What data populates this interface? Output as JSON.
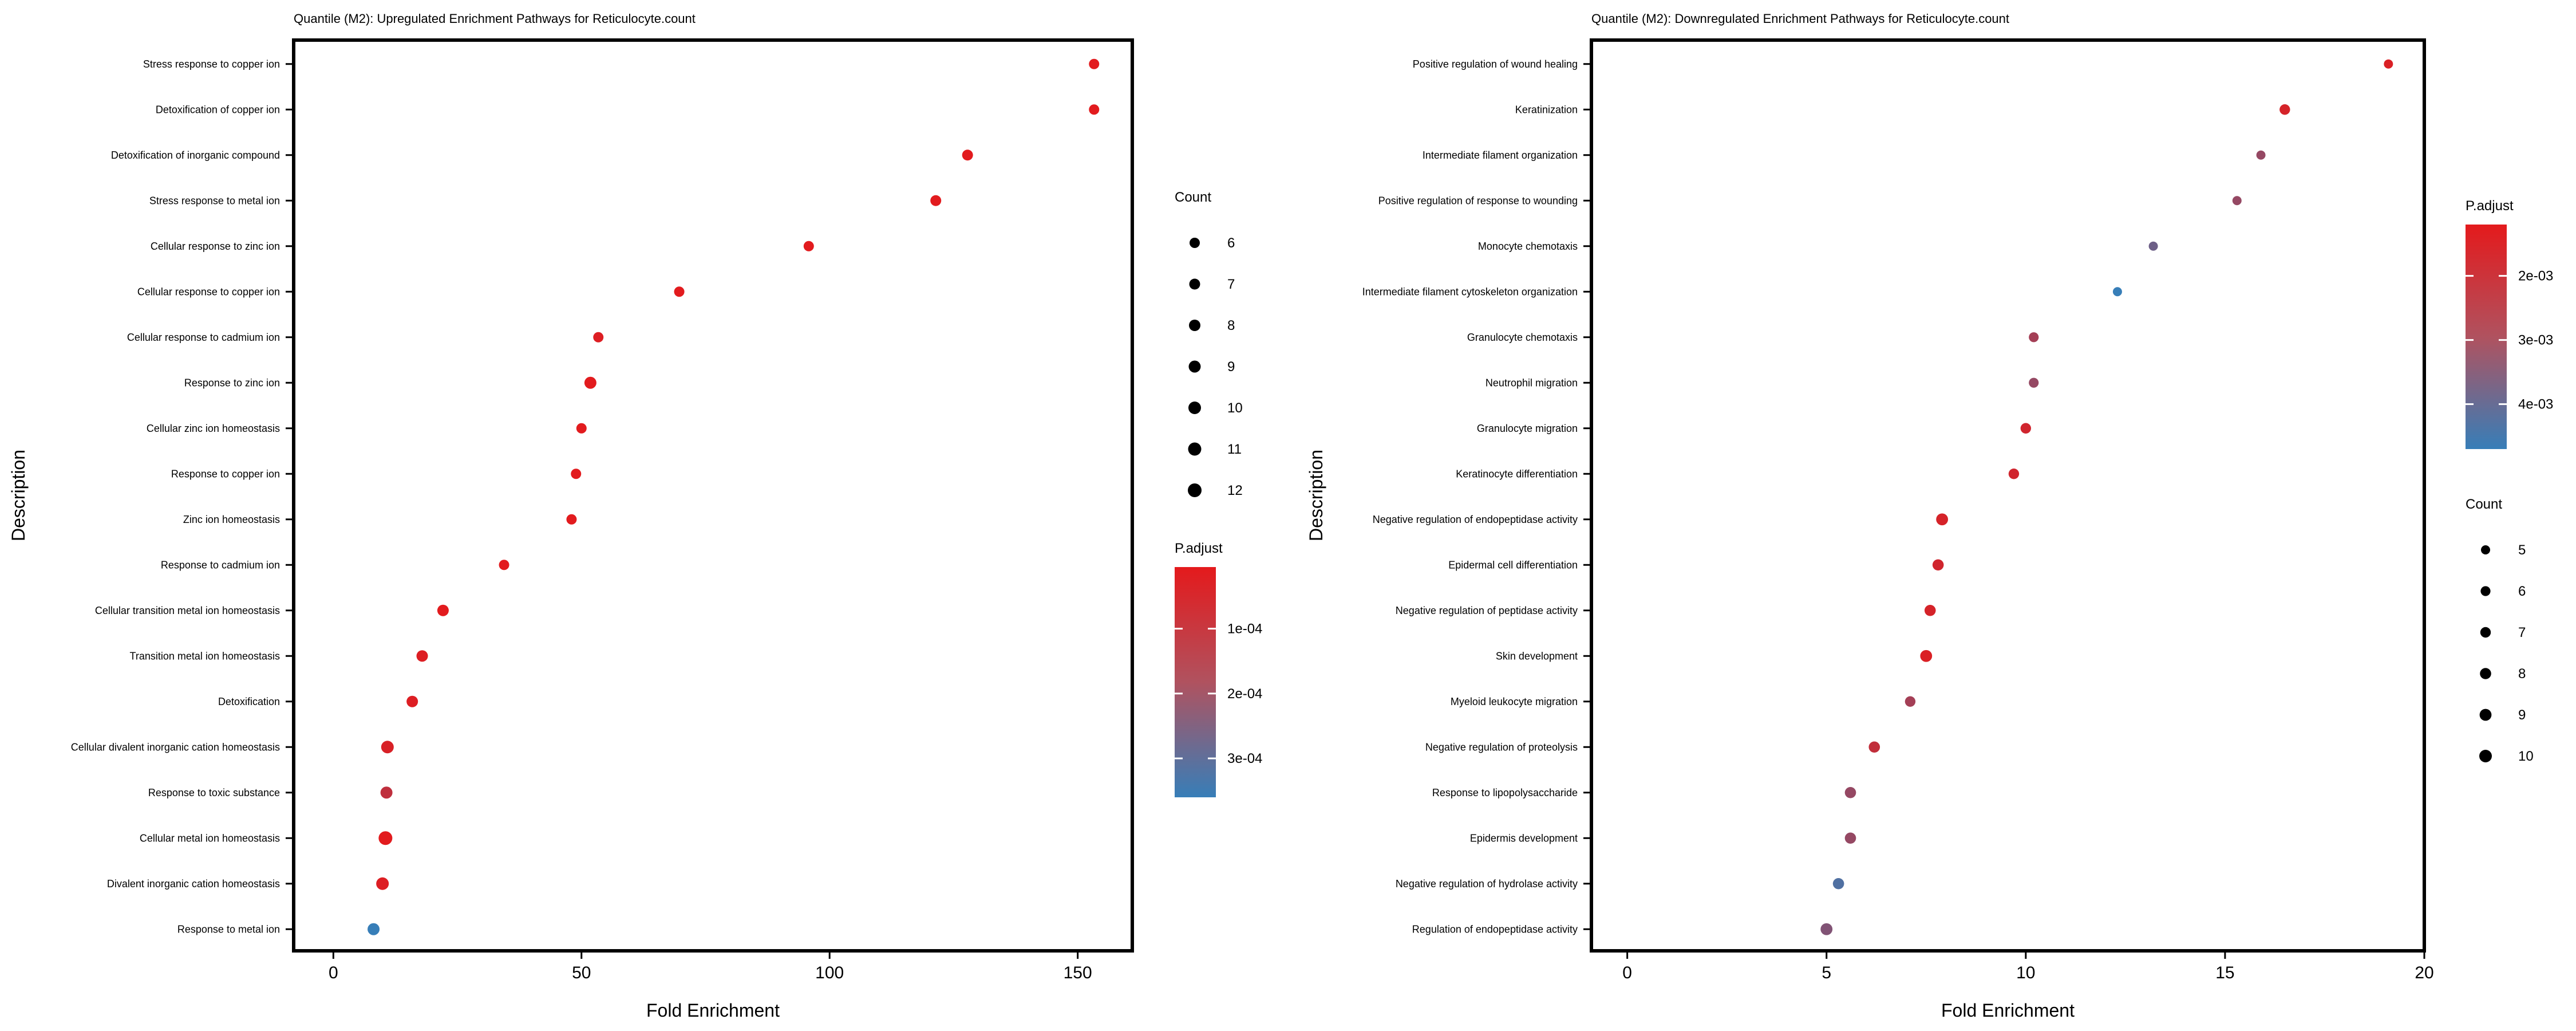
{
  "chart_data": [
    {
      "type": "scatter",
      "title": "Quantile (M2): Upregulated Enrichment Pathways for Reticulocyte.count",
      "xlabel": "Fold Enrichment",
      "ylabel": "Description",
      "xlim": [
        -8,
        161
      ],
      "xticks": [
        0,
        50,
        100,
        150
      ],
      "grid": false,
      "legend_position": "right",
      "descriptions": [
        "Stress response to copper ion",
        "Detoxification of copper ion",
        "Detoxification of inorganic compound",
        "Stress response to metal ion",
        "Cellular response to zinc ion",
        "Cellular response to copper ion",
        "Cellular response to cadmium ion",
        "Response to zinc ion",
        "Cellular zinc ion homeostasis",
        "Response to copper ion",
        "Zinc ion homeostasis",
        "Response to cadmium ion",
        "Cellular transition metal ion homeostasis",
        "Transition metal ion homeostasis",
        "Detoxification",
        "Cellular divalent inorganic cation homeostasis",
        "Response to toxic substance",
        "Cellular metal ion homeostasis",
        "Divalent inorganic cation homeostasis",
        "Response to metal ion"
      ],
      "fold_enrichment": [
        153.3,
        153.3,
        127.8,
        121.4,
        95.8,
        69.7,
        53.4,
        51.8,
        50.0,
        48.9,
        48.0,
        34.4,
        22.1,
        17.9,
        15.9,
        10.9,
        10.7,
        10.5,
        9.9,
        8.1
      ],
      "count": [
        6,
        6,
        7,
        7,
        6,
        6,
        6,
        9,
        6,
        6,
        6,
        6,
        8,
        8,
        8,
        10,
        9,
        12,
        10,
        9
      ],
      "p_adjust": [
        1e-05,
        1e-05,
        1e-05,
        1e-05,
        1e-05,
        1e-05,
        2e-05,
        1e-05,
        1e-05,
        1e-05,
        1e-05,
        1e-05,
        1e-05,
        2e-05,
        2e-05,
        3e-05,
        8e-05,
        1e-05,
        2e-05,
        0.00036
      ],
      "legend_count": {
        "title": "Count",
        "values": [
          6,
          7,
          8,
          9,
          10,
          11,
          12
        ],
        "labels": [
          "6",
          "7",
          "8",
          "9",
          "10",
          "11",
          "12"
        ]
      },
      "legend_padj": {
        "title": "P.adjust",
        "range": [
          5e-06,
          0.00036
        ],
        "ticks": [
          0.0001,
          0.0002,
          0.0003
        ],
        "tick_labels": [
          "1e-04",
          "2e-04",
          "3e-04"
        ],
        "color_low": "#e41a1c",
        "color_high": "#377eb8"
      }
    },
    {
      "type": "scatter",
      "title": "Quantile (M2): Downregulated Enrichment Pathways for Reticulocyte.count",
      "xlabel": "Fold Enrichment",
      "ylabel": "Description",
      "xlim": [
        -0.9,
        20
      ],
      "xticks": [
        0,
        5,
        10,
        15,
        20
      ],
      "grid": false,
      "legend_position": "right",
      "descriptions": [
        "Positive regulation of wound healing",
        "Keratinization",
        "Intermediate filament organization",
        "Positive regulation of response to wounding",
        "Monocyte chemotaxis",
        "Intermediate filament cytoskeleton organization",
        "Granulocyte chemotaxis",
        "Neutrophil migration",
        "Granulocyte migration",
        "Keratinocyte differentiation",
        "Negative regulation of endopeptidase activity",
        "Epidermal cell differentiation",
        "Negative regulation of peptidase activity",
        "Skin development",
        "Myeloid leukocyte migration",
        "Negative regulation of proteolysis",
        "Response to lipopolysaccharide",
        "Epidermis development",
        "Negative regulation of hydrolase activity",
        "Regulation of endopeptidase activity"
      ],
      "fold_enrichment": [
        19.1,
        16.5,
        15.9,
        15.3,
        13.2,
        12.3,
        10.2,
        10.2,
        10.0,
        9.7,
        7.9,
        7.8,
        7.6,
        7.5,
        7.1,
        6.2,
        5.6,
        5.6,
        5.3,
        5.0
      ],
      "count": [
        5,
        7,
        5,
        5,
        5,
        5,
        6,
        6,
        7,
        7,
        9,
        8,
        8,
        9,
        7,
        8,
        8,
        8,
        8,
        9
      ],
      "p_adjust": [
        0.0014,
        0.0015,
        0.0028,
        0.0028,
        0.0036,
        0.0047,
        0.0025,
        0.0028,
        0.0016,
        0.0016,
        0.0015,
        0.0016,
        0.0015,
        0.0014,
        0.0025,
        0.0019,
        0.0028,
        0.0028,
        0.0042,
        0.0032
      ],
      "legend_count": {
        "title": "Count",
        "values": [
          5,
          6,
          7,
          8,
          9,
          10
        ],
        "labels": [
          "5",
          "6",
          "7",
          "8",
          "9",
          "10"
        ]
      },
      "legend_padj": {
        "title": "P.adjust",
        "range": [
          0.0012,
          0.0047
        ],
        "ticks": [
          0.002,
          0.003,
          0.004
        ],
        "tick_labels": [
          "2e-03",
          "3e-03",
          "4e-03"
        ],
        "color_low": "#e41a1c",
        "color_high": "#377eb8"
      }
    }
  ]
}
